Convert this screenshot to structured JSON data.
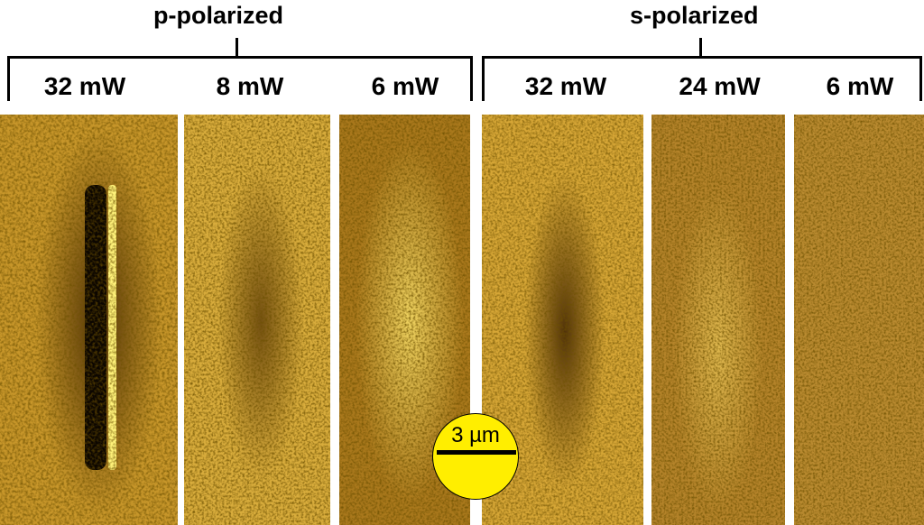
{
  "groups": [
    {
      "title": "p-polarized",
      "powers": [
        "32 mW",
        "8 mW",
        "6 mW"
      ]
    },
    {
      "title": "s-polarized",
      "powers": [
        "32 mW",
        "24 mW",
        "6 mW"
      ]
    }
  ],
  "scale_bar": {
    "label": "3 µm"
  },
  "colors": {
    "dark": "#2a1500",
    "mid": "#b8860b",
    "bright": "#ffee55",
    "scale_bar_fill": "#ffee00"
  }
}
